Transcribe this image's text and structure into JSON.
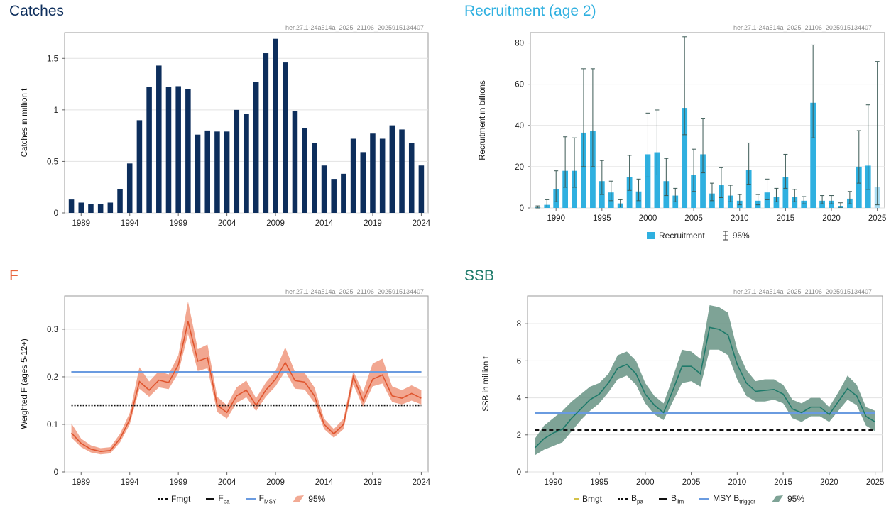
{
  "panels": {
    "catches": {
      "title": "Catches",
      "code": "her.27.1-24a514a_2025_21106_2025915134407",
      "color": "#0d2e5c"
    },
    "recruitment": {
      "title": "Recruitment (age 2)",
      "code": "her.27.1-24a514a_2025_21106_2025915134407",
      "color": "#2fb0e0"
    },
    "f": {
      "title": "F",
      "code": "her.27.1-24a514a_2025_21106_2025915134407",
      "color": "#e8643c"
    },
    "ssb": {
      "title": "SSB",
      "code": "her.27.1-24a514a_2025_21106_2025915134407",
      "color": "#1e7a6a"
    }
  },
  "legends": {
    "recruitment": {
      "recruitment": "Recruitment",
      "ci": "95%"
    },
    "f": {
      "fmgt": "Fmgt",
      "fpa_main": "F",
      "fpa_sub": "pa",
      "fmsy_main": "F",
      "fmsy_sub": "MSY",
      "ci": "95%"
    },
    "ssb": {
      "bmgt": "Bmgt",
      "bpa_main": "B",
      "bpa_sub": "pa",
      "blim_main": "B",
      "blim_sub": "lim",
      "msy_main": "MSY B",
      "msy_sub": "trigger",
      "ci": "95%"
    }
  },
  "chart_data": [
    {
      "id": "catches",
      "type": "bar",
      "ylabel": "Catches in million t",
      "ylim": [
        0,
        1.75
      ],
      "yticks": [
        0,
        0.5,
        1,
        1.5
      ],
      "ytick_labels": [
        "0",
        "0.5",
        "1",
        "1.5"
      ],
      "xticks": [
        1989,
        1994,
        1999,
        2004,
        2009,
        2014,
        2019,
        2024
      ],
      "xlim": [
        1987.3,
        2024.7
      ],
      "categories": [
        1988,
        1989,
        1990,
        1991,
        1992,
        1993,
        1994,
        1995,
        1996,
        1997,
        1998,
        1999,
        2000,
        2001,
        2002,
        2003,
        2004,
        2005,
        2006,
        2007,
        2008,
        2009,
        2010,
        2011,
        2012,
        2013,
        2014,
        2015,
        2016,
        2017,
        2018,
        2019,
        2020,
        2021,
        2022,
        2023,
        2024
      ],
      "values": [
        0.13,
        0.1,
        0.085,
        0.085,
        0.1,
        0.23,
        0.48,
        0.9,
        1.22,
        1.43,
        1.22,
        1.23,
        1.2,
        0.76,
        0.8,
        0.79,
        0.79,
        1.0,
        0.96,
        1.27,
        1.55,
        1.69,
        1.46,
        0.99,
        0.82,
        0.68,
        0.46,
        0.33,
        0.38,
        0.72,
        0.59,
        0.77,
        0.72,
        0.85,
        0.81,
        0.68,
        0.46
      ],
      "grid": true
    },
    {
      "id": "recruitment",
      "type": "bar",
      "ylabel": "Recruitment in billions",
      "ylim": [
        0,
        85
      ],
      "yticks": [
        0,
        20,
        40,
        60,
        80
      ],
      "ytick_labels": [
        "0",
        "20",
        "40",
        "60",
        "80"
      ],
      "xticks": [
        1990,
        1995,
        2000,
        2005,
        2010,
        2015,
        2020,
        2025
      ],
      "xlim": [
        1987.2,
        2025.8
      ],
      "categories": [
        1988,
        1989,
        1990,
        1991,
        1992,
        1993,
        1994,
        1995,
        1996,
        1997,
        1998,
        1999,
        2000,
        2001,
        2002,
        2003,
        2004,
        2005,
        2006,
        2007,
        2008,
        2009,
        2010,
        2011,
        2012,
        2013,
        2014,
        2015,
        2016,
        2017,
        2018,
        2019,
        2020,
        2021,
        2022,
        2023,
        2024,
        2025
      ],
      "values": [
        0.3,
        1.5,
        9,
        18,
        18,
        36.5,
        37.5,
        13,
        7.5,
        2.2,
        15,
        8,
        26,
        27,
        13,
        6,
        48.5,
        16,
        26,
        7,
        11,
        6,
        3.5,
        18.5,
        3.5,
        7.5,
        5.5,
        15,
        5.5,
        3.5,
        51,
        3.5,
        3.5,
        1,
        4.5,
        20,
        20.5,
        10
      ],
      "lower": [
        0,
        0.5,
        3,
        10,
        10,
        20,
        20,
        6.5,
        3.5,
        0.5,
        8.5,
        3.5,
        15,
        16,
        6,
        3,
        35.5,
        8,
        17,
        3.5,
        5,
        3,
        1.5,
        11.5,
        1.5,
        4,
        3,
        9.5,
        3,
        2,
        34,
        2,
        2,
        0.3,
        2,
        12,
        9,
        1.5
      ],
      "upper": [
        1,
        4,
        18,
        34.5,
        34,
        67.5,
        67.5,
        23,
        13,
        4,
        25.5,
        14,
        46,
        47.5,
        24,
        9.5,
        83,
        28.5,
        43.5,
        12,
        19.5,
        11,
        6.5,
        31.5,
        6.5,
        14,
        9.5,
        26,
        9,
        5.5,
        79,
        6,
        6,
        2.5,
        8,
        37.5,
        50,
        71
      ],
      "last_bar_color": "#a8dcf2",
      "grid": true
    },
    {
      "id": "f",
      "type": "line",
      "ylabel": "Weighted F (ages 5-12+)",
      "ylim": [
        0,
        0.37
      ],
      "yticks": [
        0,
        0.1,
        0.2,
        0.3
      ],
      "ytick_labels": [
        "0",
        "0.1",
        "0.2",
        "0.3"
      ],
      "xticks": [
        1989,
        1994,
        1999,
        2004,
        2009,
        2014,
        2019,
        2024
      ],
      "xlim": [
        1987.3,
        2024.7
      ],
      "x": [
        1988,
        1989,
        1990,
        1991,
        1992,
        1993,
        1994,
        1995,
        1996,
        1997,
        1998,
        1999,
        2000,
        2001,
        2002,
        2003,
        2004,
        2005,
        2006,
        2007,
        2008,
        2009,
        2010,
        2011,
        2012,
        2013,
        2014,
        2015,
        2016,
        2017,
        2018,
        2019,
        2020,
        2021,
        2022,
        2023,
        2024
      ],
      "series": [
        {
          "values": [
            0.082,
            0.06,
            0.048,
            0.043,
            0.045,
            0.07,
            0.11,
            0.19,
            0.172,
            0.193,
            0.188,
            0.225,
            0.316,
            0.233,
            0.24,
            0.14,
            0.125,
            0.16,
            0.172,
            0.14,
            0.172,
            0.195,
            0.23,
            0.192,
            0.189,
            0.16,
            0.1,
            0.08,
            0.1,
            0.2,
            0.15,
            0.195,
            0.204,
            0.16,
            0.155,
            0.165,
            0.155
          ]
        }
      ],
      "lower": [
        0.072,
        0.052,
        0.041,
        0.037,
        0.039,
        0.062,
        0.1,
        0.175,
        0.158,
        0.178,
        0.174,
        0.208,
        0.29,
        0.212,
        0.218,
        0.126,
        0.112,
        0.145,
        0.157,
        0.128,
        0.158,
        0.18,
        0.212,
        0.175,
        0.173,
        0.145,
        0.09,
        0.072,
        0.09,
        0.184,
        0.137,
        0.18,
        0.186,
        0.147,
        0.142,
        0.15,
        0.142
      ],
      "upper": [
        0.102,
        0.07,
        0.056,
        0.05,
        0.052,
        0.08,
        0.124,
        0.22,
        0.19,
        0.212,
        0.205,
        0.245,
        0.358,
        0.258,
        0.268,
        0.158,
        0.14,
        0.178,
        0.192,
        0.155,
        0.188,
        0.212,
        0.262,
        0.21,
        0.208,
        0.178,
        0.112,
        0.09,
        0.112,
        0.212,
        0.168,
        0.228,
        0.238,
        0.18,
        0.172,
        0.182,
        0.172
      ],
      "ref_lines": [
        {
          "name": "Fmgt",
          "y": 0.14,
          "style": "dotted",
          "color": "#111111"
        },
        {
          "name": "Fpa",
          "y": 0.21,
          "style": "dashed",
          "color": "#111111"
        },
        {
          "name": "FMSY",
          "y": 0.21,
          "style": "solid",
          "color": "#6a9be0"
        }
      ],
      "grid": true
    },
    {
      "id": "ssb",
      "type": "line",
      "ylabel": "SSB in million t",
      "ylim": [
        0,
        9.5
      ],
      "yticks": [
        0,
        2,
        4,
        6,
        8
      ],
      "ytick_labels": [
        "0",
        "2",
        "4",
        "6",
        "8"
      ],
      "xticks": [
        1990,
        1995,
        2000,
        2005,
        2010,
        2015,
        2020,
        2025
      ],
      "xlim": [
        1987.2,
        2025.8
      ],
      "x": [
        1988,
        1989,
        1990,
        1991,
        1992,
        1993,
        1994,
        1995,
        1996,
        1997,
        1998,
        1999,
        2000,
        2001,
        2002,
        2003,
        2004,
        2005,
        2006,
        2007,
        2008,
        2009,
        2010,
        2011,
        2012,
        2013,
        2014,
        2015,
        2016,
        2017,
        2018,
        2019,
        2020,
        2021,
        2022,
        2023,
        2024,
        2025
      ],
      "series": [
        {
          "values": [
            1.3,
            1.8,
            2.1,
            2.3,
            2.9,
            3.4,
            3.9,
            4.2,
            4.8,
            5.6,
            5.8,
            5.3,
            4.2,
            3.6,
            3.2,
            4.4,
            5.7,
            5.7,
            5.3,
            7.8,
            7.7,
            7.4,
            5.8,
            4.8,
            4.35,
            4.4,
            4.45,
            4.2,
            3.4,
            3.2,
            3.5,
            3.5,
            3.1,
            3.8,
            4.5,
            4.1,
            3.0,
            2.7
          ]
        }
      ],
      "lower": [
        0.9,
        1.2,
        1.4,
        1.6,
        2.2,
        2.8,
        3.3,
        3.7,
        4.3,
        5.0,
        5.2,
        4.7,
        3.7,
        3.1,
        2.8,
        3.8,
        4.8,
        4.9,
        4.6,
        6.6,
        6.6,
        6.3,
        5.0,
        4.1,
        3.8,
        3.8,
        3.9,
        3.7,
        2.9,
        2.7,
        3.0,
        3.0,
        2.7,
        3.3,
        3.9,
        3.6,
        2.5,
        2.2
      ],
      "upper": [
        1.8,
        2.5,
        2.9,
        3.3,
        3.8,
        4.2,
        4.6,
        4.8,
        5.3,
        6.3,
        6.5,
        6.0,
        4.8,
        4.1,
        3.7,
        5.1,
        6.6,
        6.5,
        6.1,
        9.0,
        8.9,
        8.6,
        6.6,
        5.5,
        4.9,
        5.0,
        5.0,
        4.7,
        3.9,
        3.7,
        4.0,
        4.0,
        3.5,
        4.3,
        5.2,
        4.7,
        3.5,
        3.3
      ],
      "ref_lines": [
        {
          "name": "Bmgt",
          "y": 3.17,
          "style": "dotted",
          "color": "#d4c24a"
        },
        {
          "name": "Bpa",
          "y": 3.17,
          "style": "dotted",
          "color": "#111111"
        },
        {
          "name": "Blim",
          "y": 2.27,
          "style": "dashed",
          "color": "#111111"
        },
        {
          "name": "MSY Btrigger",
          "y": 3.17,
          "style": "solid",
          "color": "#6a9be0"
        }
      ],
      "grid": true
    }
  ]
}
